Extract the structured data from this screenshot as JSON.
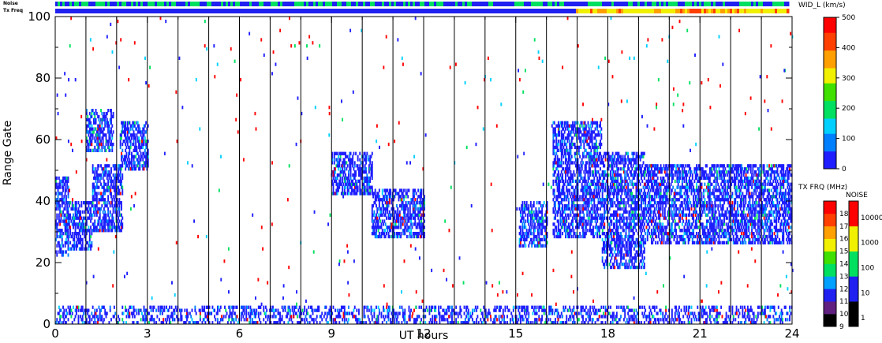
{
  "chart_data": {
    "type": "heatmap",
    "xlabel": "UT hours",
    "ylabel": "Range Gate",
    "xlim": [
      0,
      24
    ],
    "ylim": [
      0,
      100
    ],
    "x_ticks": [
      "0",
      "3",
      "6",
      "9",
      "12",
      "15",
      "18",
      "21",
      "24"
    ],
    "y_ticks": [
      "0",
      "20",
      "40",
      "60",
      "80",
      "100"
    ],
    "scan_boundaries_hours": [
      1,
      2,
      3,
      4,
      5,
      6,
      7,
      8,
      9,
      10,
      11,
      12,
      13,
      14,
      15,
      16,
      17,
      18,
      19,
      20,
      21,
      22,
      23
    ],
    "top_strips": {
      "noise_label": "Noise",
      "txfreq_label": "Tx Freq"
    },
    "main_colorbar": {
      "label": "WID_L (km/s)",
      "ticks": [
        "0",
        "100",
        "200",
        "300",
        "400",
        "500"
      ],
      "range": [
        0,
        500
      ],
      "colors": [
        "#1e1eff",
        "#0080ff",
        "#00d0ff",
        "#00e060",
        "#40e000",
        "#f0f000",
        "#ffa000",
        "#ff4000",
        "#ff0000"
      ]
    },
    "freq_colorbar": {
      "label": "TX FRQ (MHz)",
      "ticks": [
        "9",
        "10",
        "11",
        "12",
        "13",
        "14",
        "15",
        "16",
        "17",
        "18"
      ],
      "colors": [
        "#000000",
        "#602080",
        "#2020f0",
        "#00a0ff",
        "#00e060",
        "#40e000",
        "#f0f000",
        "#ffa000",
        "#ff4000",
        "#ff0000"
      ]
    },
    "noise_colorbar": {
      "label": "NOISE",
      "ticks": [
        "1",
        "10",
        "100",
        "1000",
        "10000"
      ],
      "colors": [
        "#000000",
        "#2020f0",
        "#00e060",
        "#f0f000",
        "#ff0000"
      ]
    },
    "backscatter_regions": [
      {
        "x": [
          0.0,
          0.4
        ],
        "y": [
          22,
          48
        ]
      },
      {
        "x": [
          0.4,
          1.2
        ],
        "y": [
          24,
          40
        ]
      },
      {
        "x": [
          1.2,
          2.2
        ],
        "y": [
          30,
          52
        ]
      },
      {
        "x": [
          1.0,
          1.9
        ],
        "y": [
          56,
          70
        ]
      },
      {
        "x": [
          2.1,
          3.0
        ],
        "y": [
          50,
          66
        ]
      },
      {
        "x": [
          9.0,
          10.3
        ],
        "y": [
          42,
          56
        ]
      },
      {
        "x": [
          10.3,
          12.0
        ],
        "y": [
          28,
          44
        ]
      },
      {
        "x": [
          15.1,
          16.0
        ],
        "y": [
          25,
          40
        ]
      },
      {
        "x": [
          16.2,
          17.8
        ],
        "y": [
          28,
          66
        ]
      },
      {
        "x": [
          17.8,
          19.2
        ],
        "y": [
          18,
          56
        ]
      },
      {
        "x": [
          19.2,
          24.0
        ],
        "y": [
          26,
          52
        ]
      },
      {
        "x": [
          0.0,
          24.0
        ],
        "y": [
          0,
          6
        ]
      }
    ]
  }
}
